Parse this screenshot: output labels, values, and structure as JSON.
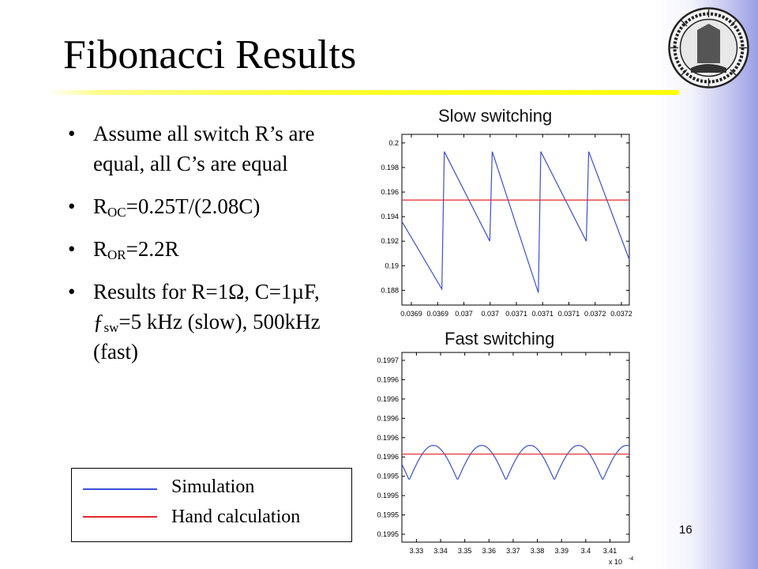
{
  "slide": {
    "title": "Fibonacci Results",
    "number": "16",
    "colors": {
      "title_rule": "#ffff00",
      "side_gradient": "#9a9ee4"
    }
  },
  "bullets": [
    {
      "text": "Assume all switch R’s are equal, all C’s are equal"
    },
    {
      "prefix": "R",
      "sub": "OC",
      "suffix": "=0.25T/(2.08C)"
    },
    {
      "prefix": "R",
      "sub": "OR",
      "suffix": "=2.2R"
    },
    {
      "prefix": "Results for R=1Ω, C=1µF, ƒ",
      "sub": "sw",
      "suffix": "=5 kHz (slow), 500kHz (fast)"
    }
  ],
  "legend": {
    "items": [
      {
        "label": "Simulation",
        "color": "#3a4fd6"
      },
      {
        "label": "Hand calculation",
        "color": "#e0282f"
      }
    ]
  },
  "logo": {
    "name": "university-seal-logo",
    "text": "THE UNIVERSITY OF CALIFORNIA 1868"
  },
  "chart_data": [
    {
      "type": "line",
      "title": "Slow switching",
      "x_tick_labels": [
        "0.0369",
        "0.0369",
        "0.037",
        "0.037",
        "0.0371",
        "0.0371",
        "0.0371",
        "0.0372",
        "0.0372"
      ],
      "y_ticks": [
        0.188,
        0.19,
        0.192,
        0.194,
        0.196,
        0.198,
        0.2
      ],
      "y_tick_labels": [
        "0.188",
        "0.19",
        "0.192",
        "0.194",
        "0.196",
        "0.198",
        "0.2"
      ],
      "xlim": [
        0.03686,
        0.03723
      ],
      "ylim": [
        0.1868,
        0.2007
      ],
      "grid": false,
      "series": [
        {
          "color": "#3a4fd6",
          "x": [
            0.03686,
            0.036925,
            0.036929,
            0.037003,
            0.037007,
            0.037082,
            0.037086,
            0.03716,
            0.037164,
            0.03723
          ],
          "y": [
            0.1936,
            0.1881,
            0.1993,
            0.192,
            0.1993,
            0.1878,
            0.1993,
            0.192,
            0.1993,
            0.1905
          ]
        },
        {
          "color": "#e0282f",
          "x": [
            0.03686,
            0.03723
          ],
          "y": [
            0.19535,
            0.19535
          ]
        }
      ]
    },
    {
      "type": "line",
      "title": "Fast switching",
      "x_tick_labels": [
        "3.33",
        "3.34",
        "3.35",
        "3.36",
        "3.37",
        "3.38",
        "3.39",
        "3.4",
        "3.41"
      ],
      "x_exponent": "x 10",
      "x_exponent_power": "-4",
      "y_tick_labels": [
        "0.1995",
        "0.1995",
        "0.1995",
        "0.1995",
        "0.1996",
        "0.1996",
        "0.1996",
        "0.1996",
        "0.1996",
        "0.1997"
      ],
      "xlim": [
        3.324,
        3.418
      ],
      "grid": false,
      "series": [
        {
          "color": "#3a4fd6",
          "shape": "rectified-ripple",
          "period": 0.02,
          "first_minimum": 3.327,
          "minimum_tick_index": 2.8,
          "maximum_tick_index": 4.6
        },
        {
          "color": "#e0282f",
          "level_tick_index": 4.15
        }
      ]
    }
  ]
}
